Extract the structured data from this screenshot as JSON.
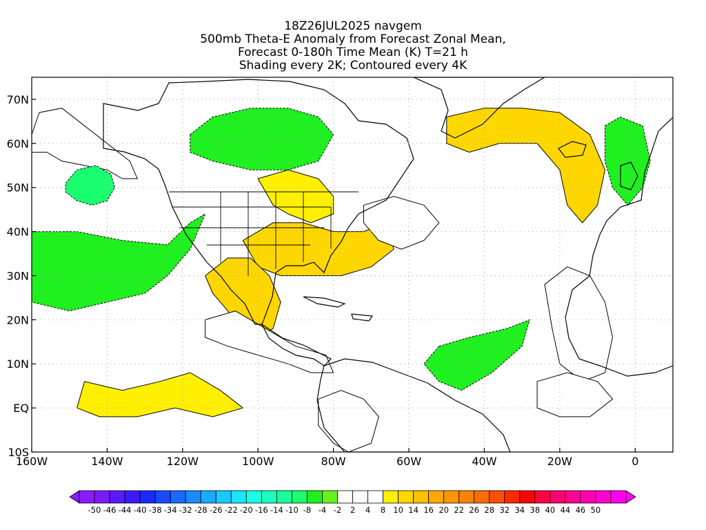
{
  "title": {
    "lines": [
      "18Z26JUL2025 navgem",
      "500mb Theta-E Anomaly from Forecast Zonal Mean,",
      "Forecast 0-180h Time Mean (K) T=21 h",
      "Shading every 2K; Contoured every 4K"
    ]
  },
  "map": {
    "projection": "cylindrical equidistant",
    "lon_range": [
      -160,
      10
    ],
    "lat_range": [
      -10,
      75
    ],
    "x_ticks": [
      {
        "lon": -160,
        "label": "160W"
      },
      {
        "lon": -140,
        "label": "140W"
      },
      {
        "lon": -120,
        "label": "120W"
      },
      {
        "lon": -100,
        "label": "100W"
      },
      {
        "lon": -80,
        "label": "80W"
      },
      {
        "lon": -60,
        "label": "60W"
      },
      {
        "lon": -40,
        "label": "40W"
      },
      {
        "lon": -20,
        "label": "20W"
      },
      {
        "lon": 0,
        "label": "0"
      }
    ],
    "y_ticks": [
      {
        "lat": 70,
        "label": "70N"
      },
      {
        "lat": 60,
        "label": "60N"
      },
      {
        "lat": 50,
        "label": "50N"
      },
      {
        "lat": 40,
        "label": "40N"
      },
      {
        "lat": 30,
        "label": "30N"
      },
      {
        "lat": 20,
        "label": "20N"
      },
      {
        "lat": 10,
        "label": "10N"
      },
      {
        "lat": 0,
        "label": "EQ"
      },
      {
        "lat": -10,
        "label": "10S"
      }
    ],
    "grid": "dotted every 10 degrees",
    "shaded_regions": [
      {
        "name": "northeast-pacific-positive",
        "anomaly": 6,
        "points": [
          [
            -160,
            62
          ],
          [
            -158,
            67
          ],
          [
            -152,
            68
          ],
          [
            -146,
            64
          ],
          [
            -140,
            60
          ],
          [
            -134,
            56
          ],
          [
            -132,
            52
          ],
          [
            -136,
            52
          ],
          [
            -140,
            54
          ],
          [
            -146,
            55
          ],
          [
            -152,
            56
          ],
          [
            -156,
            58
          ],
          [
            -160,
            58
          ]
        ]
      },
      {
        "name": "north-pacific-low-center",
        "anomaly": -10,
        "points": [
          [
            -151,
            51
          ],
          [
            -148,
            54
          ],
          [
            -143,
            55
          ],
          [
            -139,
            53
          ],
          [
            -138,
            50
          ],
          [
            -140,
            47
          ],
          [
            -144,
            46
          ],
          [
            -148,
            47
          ],
          [
            -151,
            49
          ]
        ]
      },
      {
        "name": "hudson-bay-negative",
        "anomaly": -8,
        "points": [
          [
            -118,
            62
          ],
          [
            -112,
            66
          ],
          [
            -102,
            68
          ],
          [
            -92,
            68
          ],
          [
            -84,
            66
          ],
          [
            -80,
            62
          ],
          [
            -84,
            56
          ],
          [
            -92,
            54
          ],
          [
            -102,
            54
          ],
          [
            -112,
            56
          ],
          [
            -118,
            58
          ]
        ]
      },
      {
        "name": "east-pacific-negative-band",
        "anomaly": -6,
        "points": [
          [
            -160,
            40
          ],
          [
            -148,
            40
          ],
          [
            -136,
            38
          ],
          [
            -124,
            37
          ],
          [
            -118,
            42
          ],
          [
            -114,
            44
          ],
          [
            -118,
            36
          ],
          [
            -124,
            30
          ],
          [
            -130,
            26
          ],
          [
            -140,
            24
          ],
          [
            -150,
            22
          ],
          [
            -160,
            24
          ]
        ]
      },
      {
        "name": "us-midwest-positive",
        "anomaly": 8,
        "points": [
          [
            -100,
            52
          ],
          [
            -92,
            54
          ],
          [
            -84,
            52
          ],
          [
            -80,
            48
          ],
          [
            -80,
            44
          ],
          [
            -86,
            42
          ],
          [
            -92,
            44
          ],
          [
            -96,
            46
          ]
        ]
      },
      {
        "name": "eastern-us-positive",
        "anomaly": 12,
        "points": [
          [
            -104,
            38
          ],
          [
            -96,
            42
          ],
          [
            -88,
            42
          ],
          [
            -80,
            40
          ],
          [
            -72,
            40
          ],
          [
            -66,
            42
          ],
          [
            -64,
            36
          ],
          [
            -70,
            32
          ],
          [
            -78,
            30
          ],
          [
            -86,
            30
          ],
          [
            -94,
            30
          ],
          [
            -100,
            32
          ]
        ]
      },
      {
        "name": "mexico-gulf-positive",
        "anomaly": 12,
        "points": [
          [
            -114,
            30
          ],
          [
            -108,
            34
          ],
          [
            -102,
            34
          ],
          [
            -97,
            30
          ],
          [
            -94,
            24
          ],
          [
            -96,
            18
          ],
          [
            -100,
            16
          ],
          [
            -104,
            18
          ],
          [
            -108,
            22
          ],
          [
            -112,
            26
          ]
        ]
      },
      {
        "name": "central-america-band",
        "anomaly": 6,
        "points": [
          [
            -114,
            20
          ],
          [
            -106,
            22
          ],
          [
            -98,
            18
          ],
          [
            -90,
            14
          ],
          [
            -82,
            12
          ],
          [
            -80,
            8
          ],
          [
            -86,
            8
          ],
          [
            -92,
            10
          ],
          [
            -100,
            12
          ],
          [
            -108,
            14
          ],
          [
            -114,
            16
          ]
        ]
      },
      {
        "name": "tropical-pacific-positive",
        "anomaly": 8,
        "points": [
          [
            -146,
            6
          ],
          [
            -136,
            4
          ],
          [
            -126,
            6
          ],
          [
            -118,
            8
          ],
          [
            -110,
            4
          ],
          [
            -104,
            0
          ],
          [
            -112,
            -2
          ],
          [
            -122,
            0
          ],
          [
            -132,
            -2
          ],
          [
            -142,
            -2
          ],
          [
            -148,
            0
          ]
        ]
      },
      {
        "name": "greenland-north-atlantic-positive",
        "anomaly": 10,
        "points": [
          [
            -50,
            66
          ],
          [
            -40,
            68
          ],
          [
            -30,
            68
          ],
          [
            -20,
            67
          ],
          [
            -12,
            62
          ],
          [
            -8,
            54
          ],
          [
            -10,
            46
          ],
          [
            -14,
            42
          ],
          [
            -18,
            46
          ],
          [
            -20,
            54
          ],
          [
            -26,
            60
          ],
          [
            -36,
            60
          ],
          [
            -44,
            58
          ],
          [
            -50,
            60
          ]
        ]
      },
      {
        "name": "atlantic-positive-streak",
        "anomaly": 6,
        "points": [
          [
            -72,
            46
          ],
          [
            -64,
            48
          ],
          [
            -56,
            46
          ],
          [
            -52,
            42
          ],
          [
            -56,
            38
          ],
          [
            -62,
            36
          ],
          [
            -68,
            38
          ],
          [
            -72,
            42
          ]
        ]
      },
      {
        "name": "south-america-positive",
        "anomaly": 6,
        "points": [
          [
            -84,
            2
          ],
          [
            -78,
            4
          ],
          [
            -72,
            2
          ],
          [
            -68,
            -2
          ],
          [
            -70,
            -8
          ],
          [
            -76,
            -10
          ],
          [
            -80,
            -8
          ],
          [
            -84,
            -4
          ]
        ]
      },
      {
        "name": "west-africa-positive",
        "anomaly": 6,
        "points": [
          [
            -24,
            28
          ],
          [
            -18,
            32
          ],
          [
            -12,
            30
          ],
          [
            -8,
            24
          ],
          [
            -6,
            16
          ],
          [
            -8,
            8
          ],
          [
            -14,
            6
          ],
          [
            -20,
            10
          ],
          [
            -22,
            18
          ]
        ]
      },
      {
        "name": "tropical-atlantic-negative",
        "anomaly": -6,
        "points": [
          [
            -52,
            14
          ],
          [
            -44,
            16
          ],
          [
            -34,
            18
          ],
          [
            -28,
            20
          ],
          [
            -30,
            14
          ],
          [
            -38,
            8
          ],
          [
            -46,
            4
          ],
          [
            -52,
            6
          ],
          [
            -56,
            10
          ]
        ]
      },
      {
        "name": "equatorial-atlantic-positive",
        "anomaly": 6,
        "points": [
          [
            -26,
            6
          ],
          [
            -18,
            8
          ],
          [
            -10,
            6
          ],
          [
            -6,
            2
          ],
          [
            -12,
            -2
          ],
          [
            -20,
            -2
          ],
          [
            -26,
            0
          ]
        ]
      },
      {
        "name": "northwest-africa-negative",
        "anomaly": -6,
        "points": [
          [
            -8,
            64
          ],
          [
            -4,
            66
          ],
          [
            2,
            64
          ],
          [
            4,
            56
          ],
          [
            2,
            50
          ],
          [
            -2,
            46
          ],
          [
            -6,
            50
          ],
          [
            -8,
            56
          ]
        ]
      }
    ]
  },
  "colorbar": {
    "labels": [
      "-50",
      "-46",
      "-44",
      "-40",
      "-38",
      "-34",
      "-32",
      "-28",
      "-26",
      "-22",
      "-20",
      "-16",
      "-14",
      "-10",
      "-8",
      "-4",
      "-2",
      "2",
      "4",
      "8",
      "10",
      "14",
      "16",
      "20",
      "22",
      "26",
      "28",
      "32",
      "34",
      "38",
      "40",
      "44",
      "46",
      "50"
    ],
    "colors": [
      "#8c1aff",
      "#7a1aff",
      "#5a1aff",
      "#3a1aff",
      "#1a2aff",
      "#1a4aff",
      "#1a6aff",
      "#1a8aff",
      "#1aaaff",
      "#1acaff",
      "#1ae6ff",
      "#1affe6",
      "#1affc0",
      "#1aff9a",
      "#1aff70",
      "#20ef20",
      "#66f020",
      "#ffffff",
      "#ffffff",
      "#ffffff",
      "#fff000",
      "#ffd700",
      "#ffc000",
      "#ffaa00",
      "#ff9600",
      "#ff8200",
      "#ff6e00",
      "#ff5000",
      "#ff2a00",
      "#ff0000",
      "#ff0044",
      "#ff0070",
      "#ff0090",
      "#ff00b0",
      "#ff00d0",
      "#ff00f0"
    ]
  },
  "palette": {
    "ocean": "#ffffff",
    "coastline": "#000000",
    "grid": "#9a9a9a"
  }
}
